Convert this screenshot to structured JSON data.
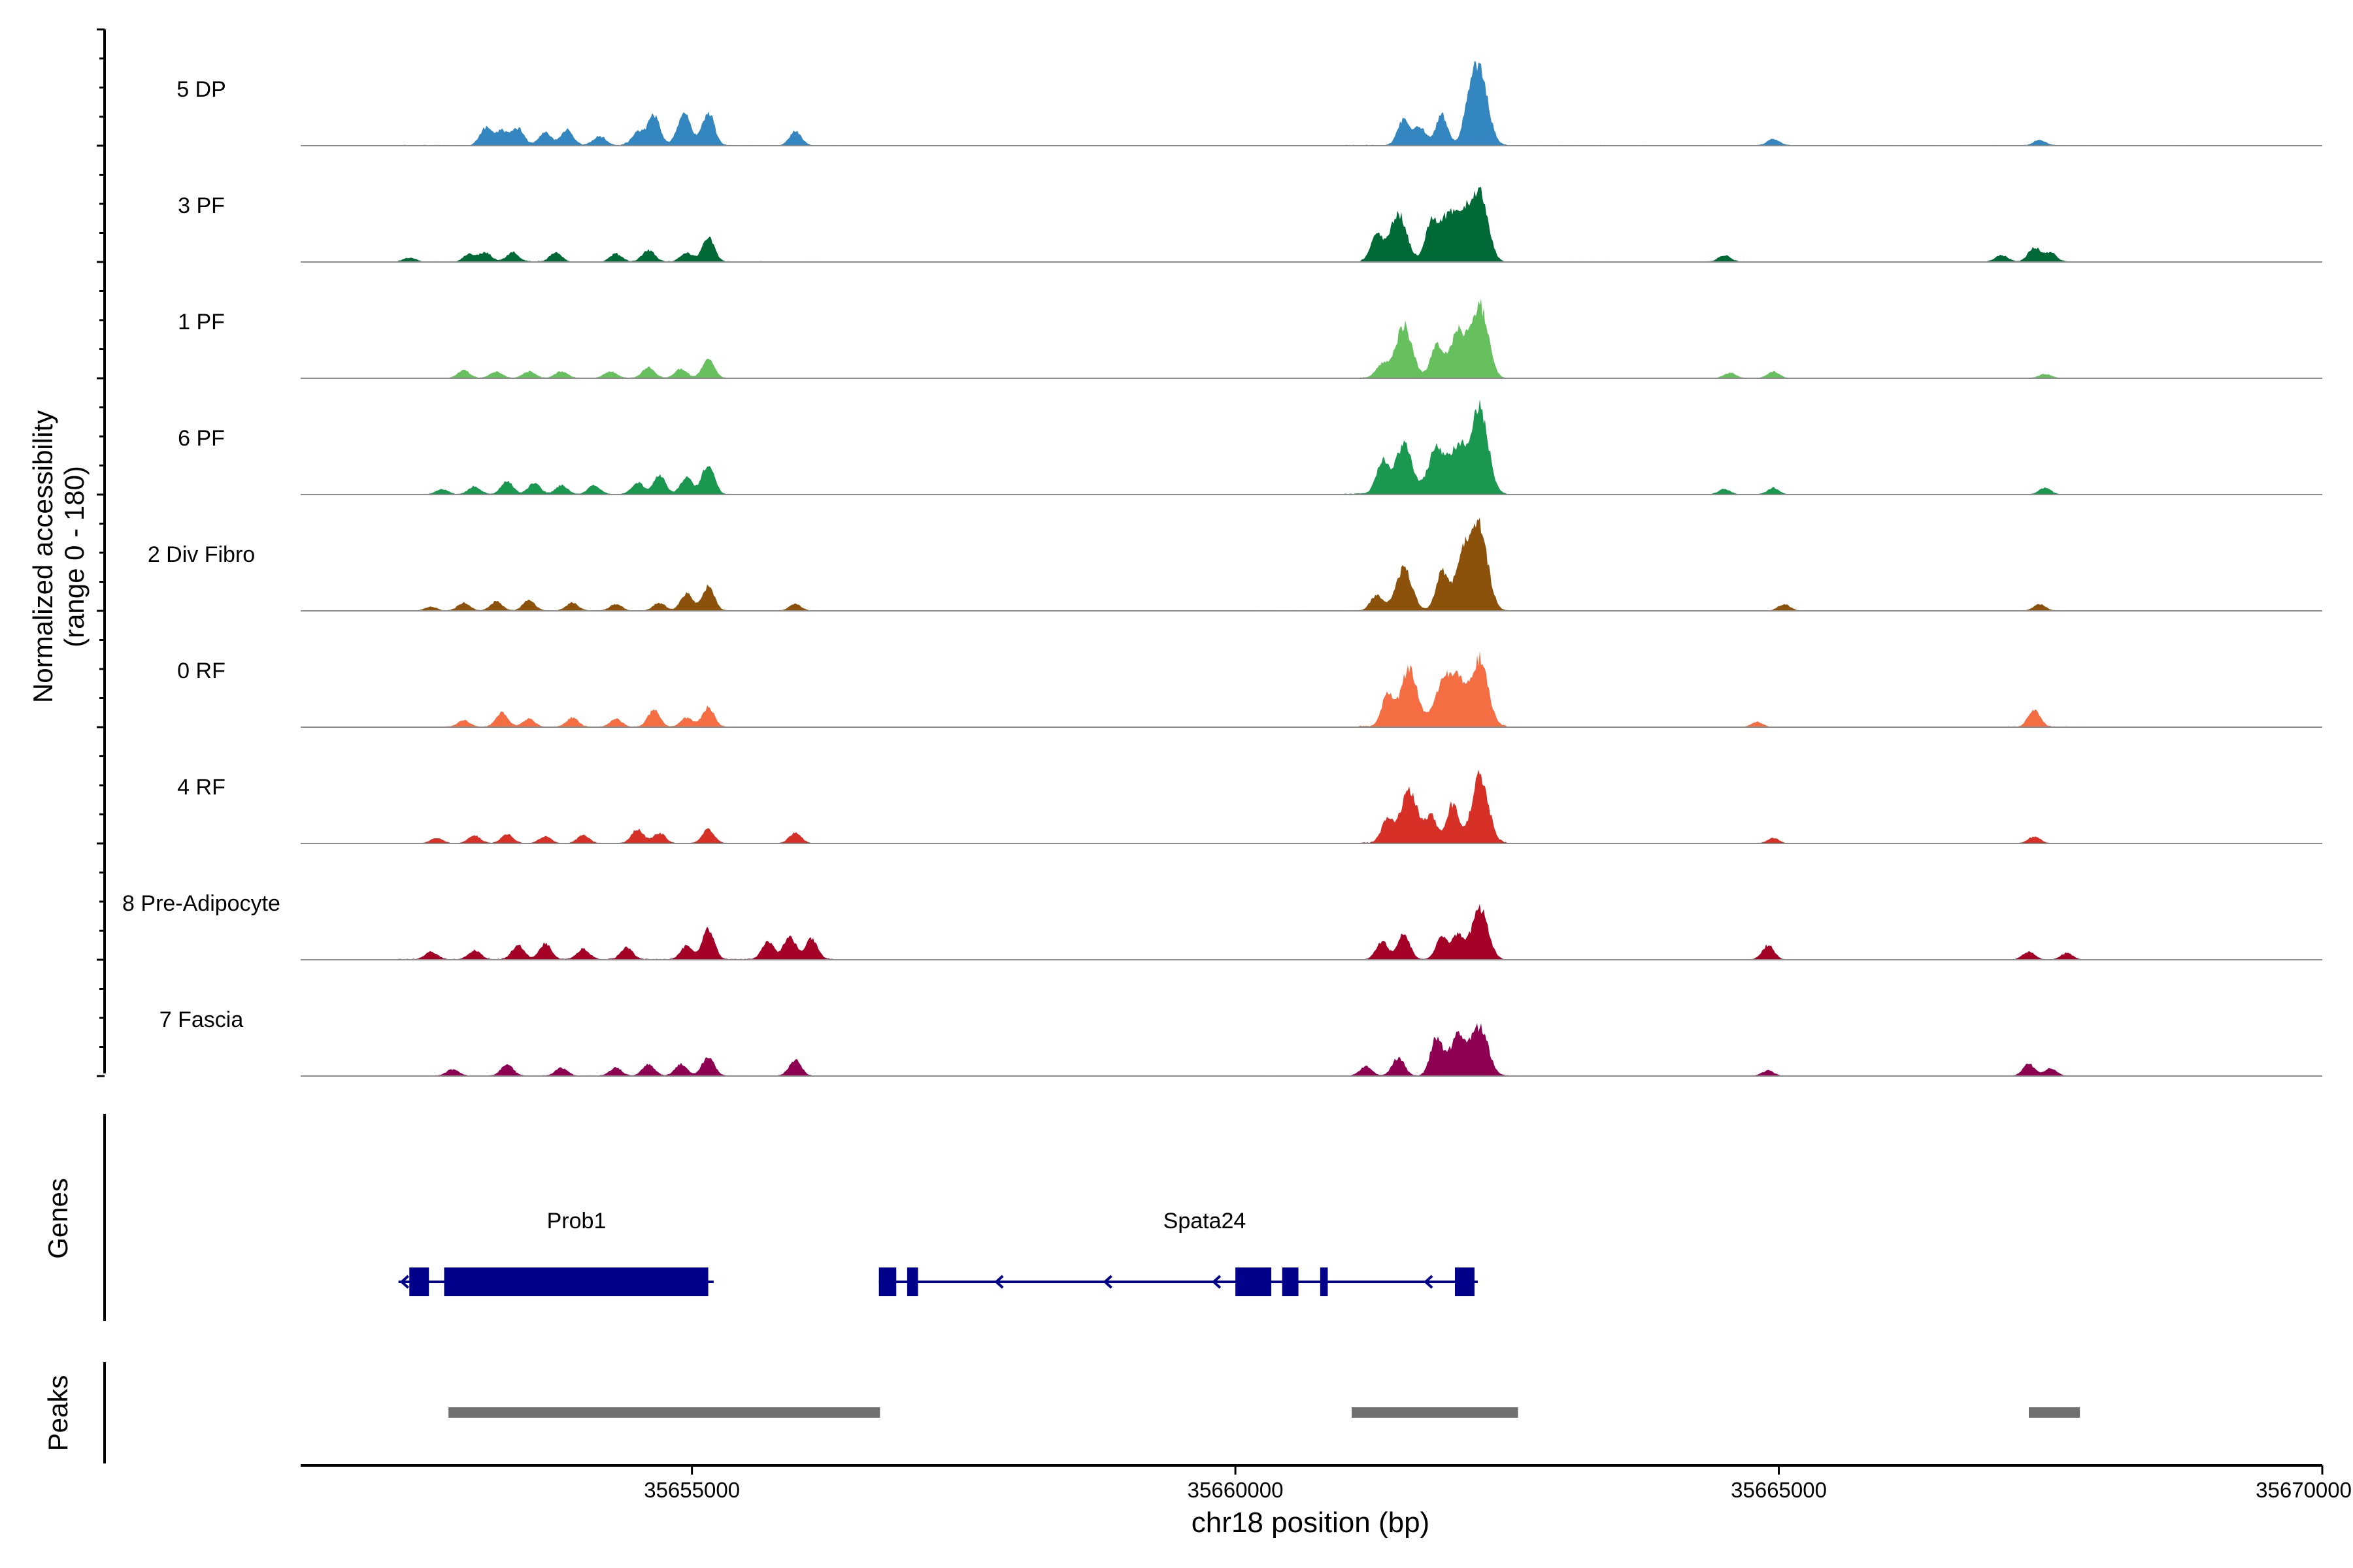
{
  "chart_data": {
    "type": "area",
    "title": "",
    "ylabel_line1": "Normalized accessibility",
    "ylabel_line2": "(range 0 - 180)",
    "xlabel": "chr18 position (bp)",
    "chromosome": "chr18",
    "x_range": [
      35651400,
      35670000
    ],
    "y_range": [
      0,
      180
    ],
    "x_ticks": [
      35655000,
      35660000,
      35665000,
      35670000
    ],
    "x_tick_labels": [
      "35655000",
      "35660000",
      "35665000",
      "35670000"
    ],
    "panel_labels": {
      "genes": "Genes",
      "peaks": "Peaks"
    },
    "series": [
      {
        "name": "5 DP",
        "color": "#3386C0",
        "base": [
          [
            35652300,
            35652800,
            0.6
          ],
          [
            35653100,
            35654400,
            0.9
          ],
          [
            35654700,
            35655600,
            0.6
          ],
          [
            35655900,
            35656400,
            0.5
          ],
          [
            35661000,
            35661800,
            0.7
          ],
          [
            35662300,
            35668800,
            0.5
          ]
        ],
        "peaks": [
          [
            35653100,
            27
          ],
          [
            35653250,
            22
          ],
          [
            35653400,
            26
          ],
          [
            35653650,
            20
          ],
          [
            35653850,
            24
          ],
          [
            35654150,
            14
          ],
          [
            35654500,
            22
          ],
          [
            35654650,
            48
          ],
          [
            35654900,
            22
          ],
          [
            35654950,
            32
          ],
          [
            35655150,
            52
          ],
          [
            35655950,
            22
          ],
          [
            35661550,
            40
          ],
          [
            35661700,
            28
          ],
          [
            35661900,
            48
          ],
          [
            35662150,
            48
          ],
          [
            35662250,
            110
          ],
          [
            35664950,
            10
          ],
          [
            35667400,
            8
          ]
        ]
      },
      {
        "name": "3 PF",
        "color": "#006A36",
        "base": [
          [
            35652300,
            35652800,
            0.5
          ],
          [
            35653000,
            35653800,
            0.7
          ],
          [
            35654200,
            35655400,
            0.6
          ],
          [
            35655500,
            35656400,
            0.5
          ],
          [
            35661150,
            35662400,
            1.2
          ],
          [
            35663000,
            35664800,
            0.5
          ],
          [
            35666900,
            35667700,
            0.6
          ]
        ],
        "peaks": [
          [
            35652400,
            6
          ],
          [
            35652950,
            12
          ],
          [
            35653100,
            14
          ],
          [
            35653350,
            14
          ],
          [
            35653750,
            14
          ],
          [
            35654300,
            12
          ],
          [
            35654600,
            18
          ],
          [
            35654950,
            14
          ],
          [
            35655150,
            38
          ],
          [
            35661300,
            40
          ],
          [
            35661500,
            72
          ],
          [
            35661800,
            55
          ],
          [
            35661950,
            65
          ],
          [
            35662100,
            62
          ],
          [
            35662250,
            100
          ],
          [
            35664500,
            10
          ],
          [
            35667050,
            10
          ],
          [
            35667350,
            22
          ],
          [
            35667500,
            14
          ]
        ]
      },
      {
        "name": "1 PF",
        "color": "#66C05E",
        "base": [
          [
            35652300,
            35653500,
            0.4
          ],
          [
            35653500,
            35655400,
            0.5
          ],
          [
            35661150,
            35662400,
            0.9
          ],
          [
            35662600,
            35665200,
            0.3
          ],
          [
            35667000,
            35667800,
            0.4
          ]
        ],
        "peaks": [
          [
            35652900,
            12
          ],
          [
            35653200,
            10
          ],
          [
            35653500,
            10
          ],
          [
            35653800,
            10
          ],
          [
            35654250,
            10
          ],
          [
            35654600,
            16
          ],
          [
            35654900,
            14
          ],
          [
            35655150,
            28
          ],
          [
            35661350,
            20
          ],
          [
            35661550,
            80
          ],
          [
            35661850,
            48
          ],
          [
            35662050,
            70
          ],
          [
            35662250,
            110
          ],
          [
            35664550,
            8
          ],
          [
            35664950,
            10
          ],
          [
            35667450,
            6
          ]
        ]
      },
      {
        "name": "6 PF",
        "color": "#1A9850",
        "base": [
          [
            35652300,
            35655500,
            0.5
          ],
          [
            35656200,
            35656800,
            0.2
          ],
          [
            35657000,
            35657300,
            0.2
          ],
          [
            35661000,
            35662500,
            1
          ],
          [
            35662600,
            35665000,
            0.3
          ],
          [
            35666600,
            35667700,
            0.3
          ]
        ],
        "peaks": [
          [
            35652700,
            8
          ],
          [
            35653000,
            12
          ],
          [
            35653300,
            20
          ],
          [
            35653550,
            18
          ],
          [
            35653800,
            14
          ],
          [
            35654100,
            14
          ],
          [
            35654500,
            18
          ],
          [
            35654700,
            30
          ],
          [
            35654950,
            26
          ],
          [
            35655150,
            48
          ],
          [
            35661350,
            50
          ],
          [
            35661550,
            78
          ],
          [
            35661850,
            70
          ],
          [
            35662050,
            72
          ],
          [
            35662250,
            132
          ],
          [
            35664500,
            8
          ],
          [
            35664950,
            10
          ],
          [
            35667450,
            10
          ]
        ]
      },
      {
        "name": "2 Div Fibro",
        "color": "#8C510A",
        "base": [
          [
            35652300,
            35655500,
            0.4
          ],
          [
            35655800,
            35656400,
            0.3
          ],
          [
            35660100,
            35662600,
            0.5
          ],
          [
            35662600,
            35668800,
            0.3
          ]
        ],
        "peaks": [
          [
            35652600,
            6
          ],
          [
            35652900,
            12
          ],
          [
            35653200,
            14
          ],
          [
            35653500,
            16
          ],
          [
            35653900,
            12
          ],
          [
            35654300,
            10
          ],
          [
            35654700,
            12
          ],
          [
            35654950,
            26
          ],
          [
            35655150,
            38
          ],
          [
            35655950,
            10
          ],
          [
            35661300,
            24
          ],
          [
            35661550,
            64
          ],
          [
            35661900,
            58
          ],
          [
            35662100,
            84
          ],
          [
            35662250,
            120
          ],
          [
            35665050,
            10
          ],
          [
            35667400,
            10
          ]
        ]
      },
      {
        "name": "0 RF",
        "color": "#F46D43",
        "base": [
          [
            35652300,
            35655500,
            0.5
          ],
          [
            35661100,
            35662500,
            1
          ],
          [
            35667100,
            35667800,
            0.6
          ]
        ],
        "peaks": [
          [
            35652900,
            10
          ],
          [
            35653250,
            22
          ],
          [
            35653500,
            12
          ],
          [
            35653900,
            14
          ],
          [
            35654300,
            12
          ],
          [
            35654650,
            26
          ],
          [
            35654950,
            14
          ],
          [
            35655150,
            30
          ],
          [
            35661400,
            48
          ],
          [
            35661600,
            88
          ],
          [
            35661900,
            62
          ],
          [
            35662050,
            68
          ],
          [
            35662250,
            104
          ],
          [
            35664800,
            8
          ],
          [
            35667350,
            26
          ]
        ]
      },
      {
        "name": "4 RF",
        "color": "#D73027",
        "base": [
          [
            35652300,
            35655500,
            0.4
          ],
          [
            35655800,
            35656300,
            0.4
          ],
          [
            35661150,
            35662500,
            1
          ],
          [
            35662600,
            35665000,
            0.3
          ],
          [
            35666900,
            35667600,
            0.4
          ]
        ],
        "peaks": [
          [
            35652650,
            8
          ],
          [
            35653000,
            12
          ],
          [
            35653300,
            14
          ],
          [
            35653650,
            10
          ],
          [
            35654000,
            12
          ],
          [
            35654500,
            22
          ],
          [
            35654700,
            16
          ],
          [
            35655150,
            22
          ],
          [
            35655950,
            16
          ],
          [
            35661400,
            36
          ],
          [
            35661600,
            82
          ],
          [
            35661800,
            40
          ],
          [
            35662000,
            60
          ],
          [
            35662250,
            104
          ],
          [
            35664950,
            8
          ],
          [
            35667350,
            10
          ]
        ]
      },
      {
        "name": "8 Pre-Adipocyte",
        "color": "#A50026",
        "base": [
          [
            35652300,
            35656300,
            0.7
          ],
          [
            35661100,
            35662400,
            0.5
          ],
          [
            35663000,
            35663800,
            0.3
          ],
          [
            35664600,
            35665100,
            0.3
          ],
          [
            35667000,
            35667800,
            0.3
          ]
        ],
        "peaks": [
          [
            35652600,
            12
          ],
          [
            35653000,
            14
          ],
          [
            35653400,
            22
          ],
          [
            35653650,
            24
          ],
          [
            35654000,
            16
          ],
          [
            35654400,
            18
          ],
          [
            35654950,
            20
          ],
          [
            35655150,
            46
          ],
          [
            35655700,
            28
          ],
          [
            35655900,
            36
          ],
          [
            35656100,
            32
          ],
          [
            35661350,
            28
          ],
          [
            35661550,
            40
          ],
          [
            35661900,
            34
          ],
          [
            35662050,
            36
          ],
          [
            35662250,
            78
          ],
          [
            35664900,
            22
          ],
          [
            35667300,
            12
          ],
          [
            35667650,
            10
          ]
        ]
      },
      {
        "name": "7 Fascia",
        "color": "#8E0152",
        "base": [
          [
            35652300,
            35656400,
            0.5
          ],
          [
            35660200,
            35662800,
            0.5
          ],
          [
            35663000,
            35668800,
            0.3
          ]
        ],
        "peaks": [
          [
            35652800,
            10
          ],
          [
            35653300,
            18
          ],
          [
            35653800,
            12
          ],
          [
            35654300,
            12
          ],
          [
            35654600,
            18
          ],
          [
            35654900,
            18
          ],
          [
            35655150,
            30
          ],
          [
            35655950,
            24
          ],
          [
            35661200,
            14
          ],
          [
            35661500,
            28
          ],
          [
            35661850,
            58
          ],
          [
            35662050,
            62
          ],
          [
            35662250,
            74
          ],
          [
            35664900,
            8
          ],
          [
            35667300,
            18
          ],
          [
            35667500,
            12
          ]
        ]
      }
    ],
    "genes": [
      {
        "name": "Prob1",
        "strand": "-",
        "line": [
          35652300,
          35655200
        ],
        "exons": [
          [
            35652400,
            35652580
          ],
          [
            35652720,
            35655150
          ]
        ],
        "arrows": [
          35652330
        ]
      },
      {
        "name": "Spata24",
        "strand": "-",
        "line": [
          35656720,
          35662230
        ],
        "exons": [
          [
            35656720,
            35656880
          ],
          [
            35656980,
            35657080
          ],
          [
            35660000,
            35660330
          ],
          [
            35660430,
            35660580
          ],
          [
            35660780,
            35660850
          ],
          [
            35662020,
            35662200
          ]
        ],
        "arrows": [
          35657800,
          35658800,
          35659800,
          35661750
        ]
      }
    ],
    "peaks_track": [
      [
        35652760,
        35656730
      ],
      [
        35661070,
        35662600
      ],
      [
        35667300,
        35667770
      ]
    ]
  }
}
